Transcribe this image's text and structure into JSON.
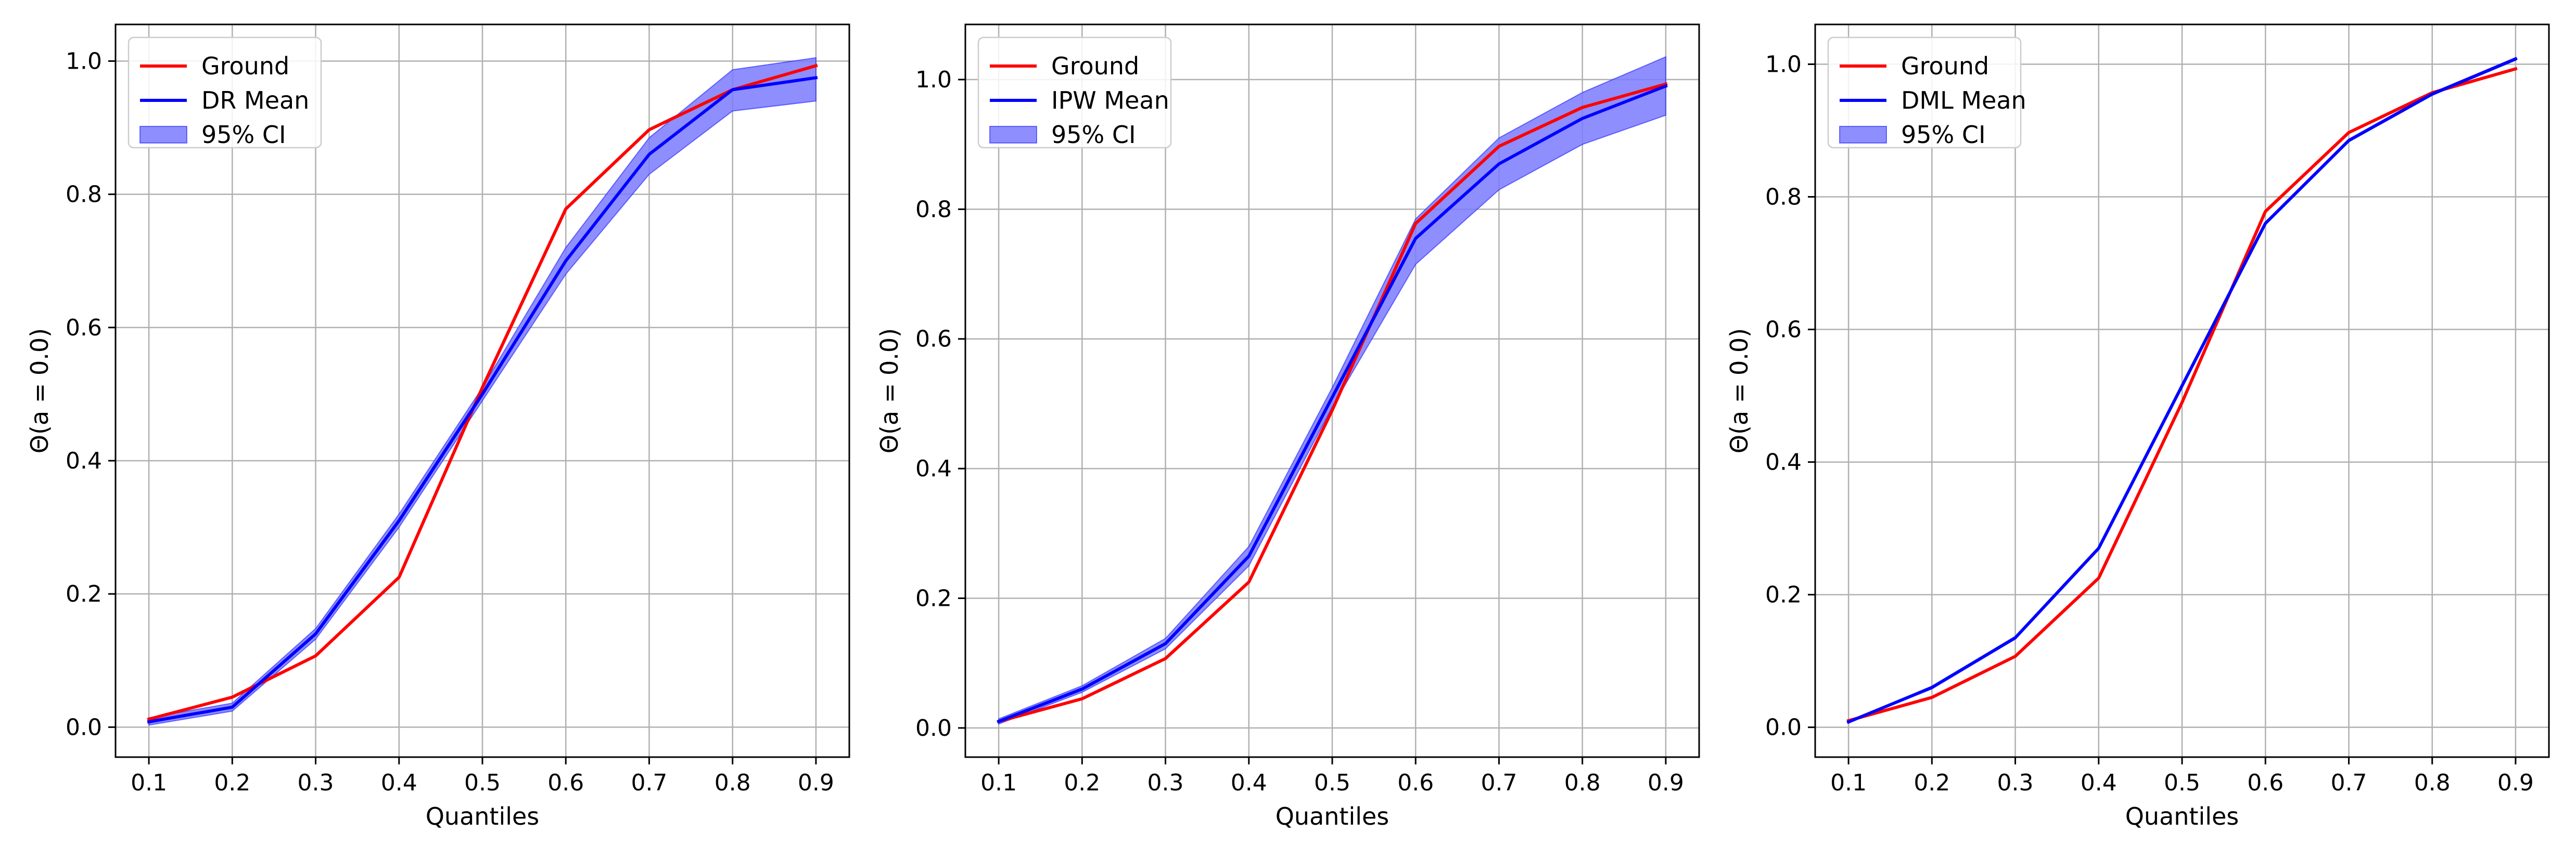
{
  "figure": {
    "colors": {
      "ground": "#ff0000",
      "estimate": "#0000ff",
      "ci_fill": "#7a7aff",
      "grid": "#b0b0b0",
      "axes": "#000000"
    }
  },
  "chart_data": [
    {
      "type": "line",
      "title": "",
      "xlabel": "Quantiles",
      "ylabel": "Θ(a = 0.0)",
      "xlim": [
        0.06,
        0.94
      ],
      "ylim": [
        -0.045,
        1.055
      ],
      "xticks": [
        0.1,
        0.2,
        0.3,
        0.4,
        0.5,
        0.6,
        0.7,
        0.8,
        0.9
      ],
      "xtick_labels": [
        "0.1",
        "0.2",
        "0.3",
        "0.4",
        "0.5",
        "0.6",
        "0.7",
        "0.8",
        "0.9"
      ],
      "yticks": [
        0.0,
        0.2,
        0.4,
        0.6,
        0.8,
        1.0
      ],
      "ytick_labels": [
        "0.0",
        "0.2",
        "0.4",
        "0.6",
        "0.8",
        "1.0"
      ],
      "grid": true,
      "legend_position": "top-left",
      "x": [
        0.1,
        0.2,
        0.3,
        0.4,
        0.5,
        0.6,
        0.7,
        0.8,
        0.9
      ],
      "series": [
        {
          "name": "Ground",
          "values": [
            0.012,
            0.045,
            0.107,
            0.225,
            0.51,
            0.778,
            0.897,
            0.957,
            0.993
          ]
        },
        {
          "name": "DR Mean",
          "values": [
            0.008,
            0.03,
            0.14,
            0.31,
            0.5,
            0.7,
            0.86,
            0.957,
            0.975
          ]
        }
      ],
      "ci": {
        "name": "95% CI",
        "lower": [
          0.003,
          0.024,
          0.132,
          0.3,
          0.49,
          0.68,
          0.83,
          0.925,
          0.94
        ],
        "upper": [
          0.014,
          0.036,
          0.148,
          0.32,
          0.51,
          0.72,
          0.885,
          0.987,
          1.005
        ]
      }
    },
    {
      "type": "line",
      "title": "",
      "xlabel": "Quantiles",
      "ylabel": "Θ(a = 0.0)",
      "xlim": [
        0.06,
        0.94
      ],
      "ylim": [
        -0.045,
        1.085
      ],
      "xticks": [
        0.1,
        0.2,
        0.3,
        0.4,
        0.5,
        0.6,
        0.7,
        0.8,
        0.9
      ],
      "xtick_labels": [
        "0.1",
        "0.2",
        "0.3",
        "0.4",
        "0.5",
        "0.6",
        "0.7",
        "0.8",
        "0.9"
      ],
      "yticks": [
        0.0,
        0.2,
        0.4,
        0.6,
        0.8,
        1.0
      ],
      "ytick_labels": [
        "0.0",
        "0.2",
        "0.4",
        "0.6",
        "0.8",
        "1.0"
      ],
      "grid": true,
      "legend_position": "top-left",
      "x": [
        0.1,
        0.2,
        0.3,
        0.4,
        0.5,
        0.6,
        0.7,
        0.8,
        0.9
      ],
      "series": [
        {
          "name": "Ground",
          "values": [
            0.01,
            0.045,
            0.107,
            0.225,
            0.49,
            0.778,
            0.897,
            0.957,
            0.993
          ]
        },
        {
          "name": "IPW Mean",
          "values": [
            0.01,
            0.06,
            0.13,
            0.265,
            0.51,
            0.755,
            0.87,
            0.94,
            0.99
          ]
        }
      ],
      "ci": {
        "name": "95% CI",
        "lower": [
          0.006,
          0.055,
          0.122,
          0.25,
          0.495,
          0.715,
          0.83,
          0.9,
          0.945
        ],
        "upper": [
          0.014,
          0.065,
          0.138,
          0.28,
          0.525,
          0.785,
          0.91,
          0.98,
          1.035
        ]
      }
    },
    {
      "type": "line",
      "title": "",
      "xlabel": "Quantiles",
      "ylabel": "Θ(a = 0.0)",
      "xlim": [
        0.06,
        0.94
      ],
      "ylim": [
        -0.045,
        1.06
      ],
      "xticks": [
        0.1,
        0.2,
        0.3,
        0.4,
        0.5,
        0.6,
        0.7,
        0.8,
        0.9
      ],
      "xtick_labels": [
        "0.1",
        "0.2",
        "0.3",
        "0.4",
        "0.5",
        "0.6",
        "0.7",
        "0.8",
        "0.9"
      ],
      "yticks": [
        0.0,
        0.2,
        0.4,
        0.6,
        0.8,
        1.0
      ],
      "ytick_labels": [
        "0.0",
        "0.2",
        "0.4",
        "0.6",
        "0.8",
        "1.0"
      ],
      "grid": true,
      "legend_position": "top-left",
      "x": [
        0.1,
        0.2,
        0.3,
        0.4,
        0.5,
        0.6,
        0.7,
        0.8,
        0.9
      ],
      "series": [
        {
          "name": "Ground",
          "values": [
            0.01,
            0.045,
            0.107,
            0.225,
            0.49,
            0.778,
            0.897,
            0.957,
            0.993
          ]
        },
        {
          "name": "DML Mean",
          "values": [
            0.008,
            0.06,
            0.135,
            0.27,
            0.515,
            0.76,
            0.885,
            0.955,
            1.008
          ]
        }
      ],
      "ci": {
        "name": "95% CI",
        "lower": [
          0.007,
          0.058,
          0.133,
          0.268,
          0.513,
          0.758,
          0.883,
          0.953,
          1.006
        ],
        "upper": [
          0.009,
          0.062,
          0.137,
          0.272,
          0.517,
          0.762,
          0.887,
          0.957,
          1.01
        ]
      }
    }
  ]
}
